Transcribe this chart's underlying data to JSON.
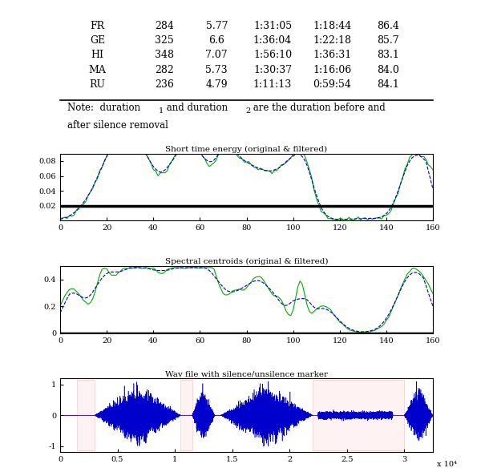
{
  "table": {
    "rows": [
      [
        "FR",
        "284",
        "5.77",
        "1:31:05",
        "1:18:44",
        "86.4"
      ],
      [
        "GE",
        "325",
        "6.6",
        "1:36:04",
        "1:22:18",
        "85.7"
      ],
      [
        "HI",
        "348",
        "7.07",
        "1:56:10",
        "1:36:31",
        "83.1"
      ],
      [
        "MA",
        "282",
        "5.73",
        "1:30:37",
        "1:16:06",
        "84.0"
      ],
      [
        "RU",
        "236",
        "4.79",
        "1:11:13",
        "0:59:54",
        "84.1"
      ]
    ]
  },
  "plot1": {
    "title": "Short time energy (original & filtered)",
    "xlim": [
      0,
      160
    ],
    "ylim": [
      0,
      0.09
    ],
    "yticks": [
      0.02,
      0.04,
      0.06,
      0.08
    ],
    "ytick_labels": [
      "0.02",
      "0.04",
      "0.06",
      "0.08"
    ],
    "threshold": 0.02,
    "xticks": [
      0,
      20,
      40,
      60,
      80,
      100,
      120,
      140,
      160
    ]
  },
  "plot2": {
    "title": "Spectral centroids (original & filtered)",
    "xlim": [
      0,
      160
    ],
    "ylim": [
      0,
      0.5
    ],
    "yticks": [
      0,
      0.2,
      0.4
    ],
    "ytick_labels": [
      "0",
      "0.2",
      "0.4"
    ],
    "xticks": [
      0,
      20,
      40,
      60,
      80,
      100,
      120,
      140,
      160
    ]
  },
  "plot3": {
    "title": "Wav file with silence/unsilence marker",
    "xlim": [
      0,
      32500
    ],
    "ylim": [
      -1.2,
      1.2
    ],
    "yticks": [
      -1,
      0,
      1
    ],
    "ytick_labels": [
      "-1",
      "0",
      "1"
    ],
    "xticks": [
      0,
      5000,
      10000,
      15000,
      20000,
      25000,
      30000
    ],
    "xtick_labels": [
      "0",
      "0.5",
      "1",
      "1.5",
      "2",
      "2.5",
      "3"
    ],
    "xlabel_exp": "x 10⁴"
  },
  "colors": {
    "green": "#00aa00",
    "blue_dash": "#0000cc",
    "red": "#cc0000",
    "blue_wave": "#0000cc",
    "black": "#000000",
    "white": "#ffffff",
    "bg": "#ffffff"
  }
}
